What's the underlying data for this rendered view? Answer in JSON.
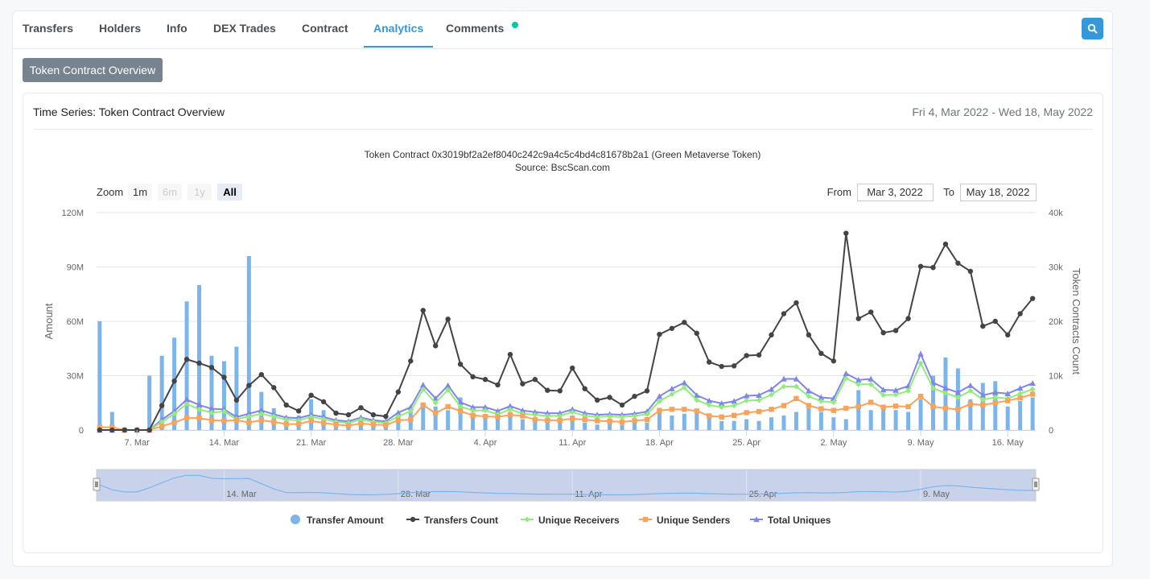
{
  "tabs": [
    {
      "label": "Transfers",
      "active": false
    },
    {
      "label": "Holders",
      "active": false
    },
    {
      "label": "Info",
      "active": false
    },
    {
      "label": "DEX Trades",
      "active": false
    },
    {
      "label": "Contract",
      "active": false
    },
    {
      "label": "Analytics",
      "active": true
    },
    {
      "label": "Comments",
      "active": false
    }
  ],
  "overview_button": "Token Contract Overview",
  "panel": {
    "title": "Time Series: Token Contract Overview",
    "range": "Fri 4, Mar 2022 - Wed 18, May 2022"
  },
  "chart_header": {
    "title": "Token Contract 0x3019bf2a2ef8040c242c9a4c5c4bd4c81678b2a1 (Green Metaverse Token)",
    "subtitle": "Source: BscScan.com"
  },
  "zoom": {
    "label": "Zoom",
    "buttons": [
      {
        "label": "1m",
        "state": "enabled"
      },
      {
        "label": "6m",
        "state": "disabled"
      },
      {
        "label": "1y",
        "state": "disabled"
      },
      {
        "label": "All",
        "state": "selected"
      }
    ]
  },
  "range_inputs": {
    "from_label": "From",
    "from_value": "Mar 3, 2022",
    "to_label": "To",
    "to_value": "May 18, 2022"
  },
  "colors": {
    "accent": "#3498db",
    "bars": "#7cb5ec",
    "transfers_count": "#434348",
    "unique_receivers": "#90ed7d",
    "unique_senders": "#f7a35c",
    "total_uniques": "#8085e9"
  },
  "chart_data": {
    "type": "line",
    "x_start": "2022-03-04",
    "x_end": "2022-05-18",
    "x": [
      "2022-03-04",
      "2022-03-05",
      "2022-03-06",
      "2022-03-07",
      "2022-03-08",
      "2022-03-09",
      "2022-03-10",
      "2022-03-11",
      "2022-03-12",
      "2022-03-13",
      "2022-03-14",
      "2022-03-15",
      "2022-03-16",
      "2022-03-17",
      "2022-03-18",
      "2022-03-19",
      "2022-03-20",
      "2022-03-21",
      "2022-03-22",
      "2022-03-23",
      "2022-03-24",
      "2022-03-25",
      "2022-03-26",
      "2022-03-27",
      "2022-03-28",
      "2022-03-29",
      "2022-03-30",
      "2022-03-31",
      "2022-04-01",
      "2022-04-02",
      "2022-04-03",
      "2022-04-04",
      "2022-04-05",
      "2022-04-06",
      "2022-04-07",
      "2022-04-08",
      "2022-04-09",
      "2022-04-10",
      "2022-04-11",
      "2022-04-12",
      "2022-04-13",
      "2022-04-14",
      "2022-04-15",
      "2022-04-16",
      "2022-04-17",
      "2022-04-18",
      "2022-04-19",
      "2022-04-20",
      "2022-04-21",
      "2022-04-22",
      "2022-04-23",
      "2022-04-24",
      "2022-04-25",
      "2022-04-26",
      "2022-04-27",
      "2022-04-28",
      "2022-04-29",
      "2022-04-30",
      "2022-05-01",
      "2022-05-02",
      "2022-05-03",
      "2022-05-04",
      "2022-05-05",
      "2022-05-06",
      "2022-05-07",
      "2022-05-08",
      "2022-05-09",
      "2022-05-10",
      "2022-05-11",
      "2022-05-12",
      "2022-05-13",
      "2022-05-14",
      "2022-05-15",
      "2022-05-16",
      "2022-05-17",
      "2022-05-18"
    ],
    "x_ticks": [
      "7. Mar",
      "14. Mar",
      "21. Mar",
      "28. Mar",
      "4. Apr",
      "11. Apr",
      "18. Apr",
      "25. Apr",
      "2. May",
      "9. May",
      "16. May"
    ],
    "x_tick_dates": [
      "2022-03-07",
      "2022-03-14",
      "2022-03-21",
      "2022-03-28",
      "2022-04-04",
      "2022-04-11",
      "2022-04-18",
      "2022-04-25",
      "2022-05-02",
      "2022-05-09",
      "2022-05-16"
    ],
    "navigator_ticks": [
      "14. Mar",
      "28. Mar",
      "11. Apr",
      "25. Apr",
      "9. May"
    ],
    "navigator_tick_dates": [
      "2022-03-14",
      "2022-03-28",
      "2022-04-11",
      "2022-04-25",
      "2022-05-09"
    ],
    "y_left": {
      "label": "Amount",
      "min": 0,
      "max": 120000000,
      "ticks": [
        "0",
        "30M",
        "60M",
        "90M",
        "120M"
      ]
    },
    "y_right": {
      "label": "Token Contracts Count",
      "min": 0,
      "max": 40000,
      "ticks": [
        "0",
        "10k",
        "20k",
        "30k",
        "40k"
      ]
    },
    "grid": true,
    "legend_position": "bottom",
    "series": [
      {
        "name": "Transfer Amount",
        "axis": "left",
        "kind": "bar",
        "values": [
          60000000,
          10000000,
          0,
          0,
          30000000,
          41000000,
          51000000,
          71000000,
          80000000,
          41000000,
          38000000,
          46000000,
          96000000,
          21000000,
          12000000,
          5000000,
          8000000,
          17000000,
          11000000,
          5000000,
          3000000,
          5000000,
          3000000,
          3000000,
          6000000,
          12000000,
          14000000,
          13000000,
          11000000,
          18000000,
          9000000,
          8000000,
          7000000,
          10000000,
          6000000,
          5000000,
          5000000,
          5000000,
          8000000,
          4000000,
          3000000,
          4000000,
          3000000,
          4000000,
          4000000,
          10000000,
          8000000,
          9000000,
          10000000,
          7000000,
          5000000,
          5000000,
          6000000,
          5000000,
          7000000,
          8000000,
          10000000,
          12000000,
          10000000,
          7000000,
          6000000,
          22000000,
          11000000,
          13000000,
          11000000,
          10000000,
          17000000,
          30000000,
          40000000,
          34000000,
          17000000,
          26000000,
          27000000,
          13000000,
          16000000,
          18000000
        ]
      },
      {
        "name": "Transfers Count",
        "axis": "right",
        "kind": "line",
        "values": [
          0,
          0,
          0,
          0,
          0,
          4500,
          9000,
          13000,
          12300,
          11500,
          9700,
          5500,
          8200,
          10200,
          7800,
          4600,
          3500,
          6400,
          5200,
          3100,
          2800,
          4100,
          2800,
          2500,
          7000,
          12700,
          22000,
          15500,
          20400,
          12100,
          9800,
          9300,
          8300,
          13900,
          8500,
          9300,
          7300,
          7200,
          11400,
          7600,
          5500,
          6000,
          4600,
          6200,
          7200,
          17600,
          18700,
          19800,
          17800,
          12500,
          11700,
          11800,
          13700,
          13800,
          17500,
          21400,
          23400,
          17500,
          14100,
          12700,
          36200,
          20500,
          21700,
          17900,
          18300,
          20500,
          30100,
          29900,
          34200,
          30700,
          29200,
          19100,
          20000,
          17500,
          21400,
          24200
        ]
      },
      {
        "name": "Unique Receivers",
        "axis": "right",
        "kind": "line",
        "values": [
          0,
          0,
          0,
          0,
          0,
          1500,
          3000,
          4800,
          3800,
          3200,
          3400,
          2000,
          2500,
          3000,
          2500,
          1900,
          1800,
          2400,
          2000,
          1500,
          1300,
          1900,
          1500,
          1300,
          2500,
          3500,
          7500,
          5000,
          7400,
          4300,
          3600,
          3600,
          2900,
          3800,
          3000,
          2800,
          2600,
          2600,
          3300,
          2600,
          2400,
          2500,
          2400,
          2600,
          2900,
          5300,
          6600,
          7800,
          5500,
          4600,
          4200,
          4500,
          5400,
          5500,
          6500,
          8000,
          8000,
          6200,
          5300,
          5100,
          9500,
          8400,
          8400,
          6400,
          6500,
          7200,
          12300,
          7700,
          6800,
          6000,
          7200,
          5600,
          6000,
          5800,
          6700,
          7500
        ]
      },
      {
        "name": "Unique Senders",
        "axis": "right",
        "kind": "line",
        "values": [
          500,
          500,
          0,
          0,
          0,
          700,
          1400,
          2200,
          2200,
          1800,
          1700,
          1800,
          1400,
          1800,
          1500,
          1100,
          1100,
          1700,
          1300,
          1000,
          800,
          1200,
          1000,
          900,
          1800,
          1900,
          4600,
          3100,
          4300,
          3500,
          2700,
          2500,
          2400,
          2800,
          2600,
          1900,
          1800,
          1800,
          2100,
          1900,
          1700,
          1600,
          1500,
          1700,
          1900,
          3600,
          3800,
          3800,
          3500,
          2600,
          2400,
          2700,
          3200,
          3400,
          3800,
          4500,
          5800,
          4500,
          3900,
          3600,
          4000,
          4300,
          5100,
          4200,
          4400,
          4300,
          6200,
          4300,
          4000,
          3800,
          4800,
          4600,
          5000,
          5400,
          5900,
          6600
        ]
      },
      {
        "name": "Total Uniques",
        "axis": "right",
        "kind": "line",
        "values": [
          0,
          0,
          0,
          0,
          0,
          1900,
          3500,
          5600,
          4600,
          3900,
          3800,
          2400,
          3000,
          3600,
          2900,
          2300,
          2200,
          2800,
          2400,
          1800,
          1600,
          2300,
          1800,
          1600,
          3200,
          4200,
          8300,
          5800,
          8200,
          5100,
          4200,
          4200,
          3500,
          4400,
          3600,
          3300,
          3100,
          3100,
          3800,
          3100,
          2800,
          2900,
          2800,
          3000,
          3400,
          6200,
          7600,
          8700,
          6400,
          5400,
          4900,
          5300,
          6300,
          6400,
          7500,
          9400,
          9400,
          7200,
          6000,
          5800,
          10400,
          9200,
          9400,
          7400,
          7300,
          8100,
          14000,
          8700,
          7700,
          6900,
          8200,
          6400,
          6900,
          6700,
          7700,
          8600
        ]
      }
    ]
  }
}
